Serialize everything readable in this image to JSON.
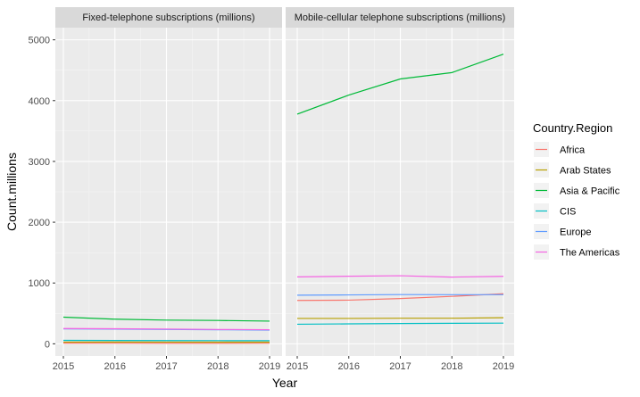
{
  "chart_data": {
    "type": "line",
    "facets": [
      "Fixed-telephone subscriptions (millions)",
      "Mobile-cellular telephone subscriptions (millions)"
    ],
    "xlabel": "Year",
    "ylabel": "Count.millions",
    "x": [
      2015,
      2016,
      2017,
      2018,
      2019
    ],
    "x_ticks": [
      "2015",
      "2016",
      "2017",
      "2018",
      "2019"
    ],
    "ylim": [
      -200,
      5200
    ],
    "y_ticks": [
      "0",
      "1000",
      "2000",
      "3000",
      "4000",
      "5000"
    ],
    "grid": true,
    "legend_title": "Country.Region",
    "legend_position": "right",
    "series": [
      {
        "name": "Africa",
        "color": "#F8766D",
        "fixed": [
          11,
          10,
          9,
          9,
          10
        ],
        "mobile": [
          713,
          718,
          745,
          780,
          823
        ]
      },
      {
        "name": "Arab States",
        "color": "#B79F00",
        "fixed": [
          28,
          29,
          28,
          27,
          27
        ],
        "mobile": [
          417,
          417,
          421,
          421,
          429
        ]
      },
      {
        "name": "Asia & Pacific",
        "color": "#00BA38",
        "fixed": [
          438,
          405,
          390,
          384,
          373
        ],
        "mobile": [
          3777,
          4091,
          4356,
          4461,
          4764
        ]
      },
      {
        "name": "CIS",
        "color": "#00BFC4",
        "fixed": [
          57,
          55,
          53,
          52,
          51
        ],
        "mobile": [
          322,
          328,
          334,
          337,
          340
        ]
      },
      {
        "name": "Europe",
        "color": "#619CFF",
        "fixed": [
          245,
          241,
          236,
          231,
          226
        ],
        "mobile": [
          800,
          804,
          810,
          808,
          808
        ]
      },
      {
        "name": "The Americas",
        "color": "#F564E3",
        "fixed": [
          251,
          248,
          243,
          236,
          232
        ],
        "mobile": [
          1100,
          1112,
          1120,
          1097,
          1110
        ]
      }
    ]
  }
}
